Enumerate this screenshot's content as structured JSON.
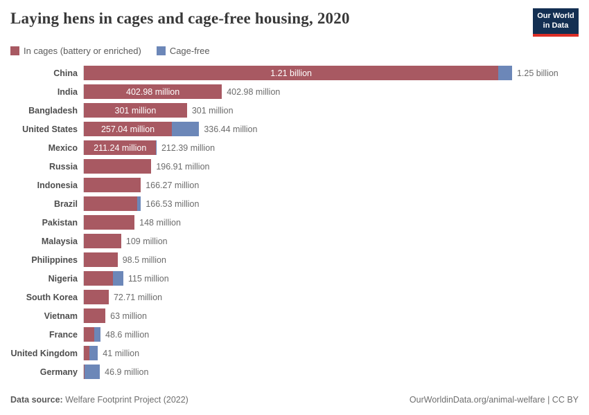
{
  "header": {
    "title": "Laying hens in cages and cage-free housing, 2020",
    "logo_line1": "Our World",
    "logo_line2": "in Data"
  },
  "legend": {
    "cages_label": "In cages (battery or enriched)",
    "cage_free_label": "Cage-free"
  },
  "colors": {
    "cages": "#a85962",
    "cage_free": "#6c87b8",
    "logo_bg": "#132f52",
    "logo_stripe": "#dc2e26",
    "axis_line": "#dcdcdc"
  },
  "chart_data": {
    "type": "bar",
    "orientation": "horizontal",
    "stacked": true,
    "title": "Laying hens in cages and cage-free housing, 2020",
    "unit": "laying hens",
    "x_max_millions": 1250,
    "legend_position": "top-left",
    "grid": false,
    "series_names": [
      "In cages (battery or enriched)",
      "Cage-free"
    ],
    "rows": [
      {
        "country": "China",
        "cages_m": 1210.0,
        "cage_free_m": 40.0,
        "bar_label": "1.21 billion",
        "total_label": "1.25 billion"
      },
      {
        "country": "India",
        "cages_m": 402.98,
        "cage_free_m": 0,
        "bar_label": "402.98 million",
        "total_label": "402.98 million"
      },
      {
        "country": "Bangladesh",
        "cages_m": 301.0,
        "cage_free_m": 0,
        "bar_label": "301 million",
        "total_label": "301 million"
      },
      {
        "country": "United States",
        "cages_m": 257.04,
        "cage_free_m": 79.4,
        "bar_label": "257.04 million",
        "total_label": "336.44 million"
      },
      {
        "country": "Mexico",
        "cages_m": 211.24,
        "cage_free_m": 1.15,
        "bar_label": "211.24 million",
        "total_label": "212.39 million"
      },
      {
        "country": "Russia",
        "cages_m": 196.91,
        "cage_free_m": 0,
        "bar_label": "",
        "total_label": "196.91 million"
      },
      {
        "country": "Indonesia",
        "cages_m": 166.27,
        "cage_free_m": 0,
        "bar_label": "",
        "total_label": "166.27 million"
      },
      {
        "country": "Brazil",
        "cages_m": 156.4,
        "cage_free_m": 10.13,
        "bar_label": "",
        "total_label": "166.53 million"
      },
      {
        "country": "Pakistan",
        "cages_m": 148.0,
        "cage_free_m": 0,
        "bar_label": "",
        "total_label": "148 million"
      },
      {
        "country": "Malaysia",
        "cages_m": 109.0,
        "cage_free_m": 0,
        "bar_label": "",
        "total_label": "109 million"
      },
      {
        "country": "Philippines",
        "cages_m": 98.5,
        "cage_free_m": 0,
        "bar_label": "",
        "total_label": "98.5 million"
      },
      {
        "country": "Nigeria",
        "cages_m": 85.0,
        "cage_free_m": 30.0,
        "bar_label": "",
        "total_label": "115 million"
      },
      {
        "country": "South Korea",
        "cages_m": 72.71,
        "cage_free_m": 0,
        "bar_label": "",
        "total_label": "72.71 million"
      },
      {
        "country": "Vietnam",
        "cages_m": 63.0,
        "cage_free_m": 0,
        "bar_label": "",
        "total_label": "63 million"
      },
      {
        "country": "France",
        "cages_m": 30.6,
        "cage_free_m": 18.0,
        "bar_label": "",
        "total_label": "48.6 million"
      },
      {
        "country": "United Kingdom",
        "cages_m": 17.0,
        "cage_free_m": 24.0,
        "bar_label": "",
        "total_label": "41 million"
      },
      {
        "country": "Germany",
        "cages_m": 3.0,
        "cage_free_m": 43.9,
        "bar_label": "",
        "total_label": "46.9 million"
      }
    ]
  },
  "footer": {
    "source_label": "Data source:",
    "source_value": " Welfare Footprint Project (2022)",
    "credit": "OurWorldinData.org/animal-welfare | CC BY"
  }
}
